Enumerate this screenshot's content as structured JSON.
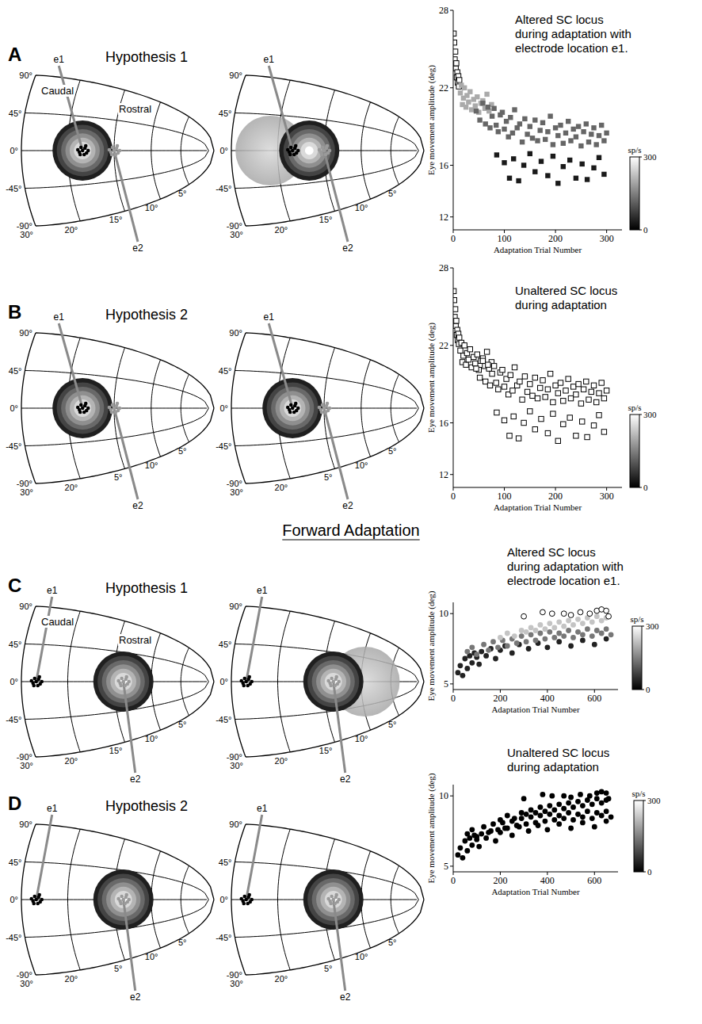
{
  "section_heading": "Forward Adaptation",
  "panels": [
    {
      "letter": "A",
      "title": "Hypothesis 1",
      "caudal": "Caudal",
      "rostral": "Rostral",
      "directions": [
        "90°",
        "45°",
        "0°",
        "-45°",
        "-90°"
      ],
      "amplitudes": [
        "30°",
        "20°",
        "15°",
        "10°",
        "5°"
      ],
      "electrodes": [
        "e1",
        "e2"
      ]
    },
    {
      "letter": "B",
      "title": "Hypothesis 2",
      "directions": [
        "90°",
        "45°",
        "0°",
        "-45°",
        "-90°"
      ],
      "amplitudes": [
        "30°",
        "20°",
        "5°",
        "10°",
        "5°"
      ],
      "electrodes": [
        "e1",
        "e2"
      ]
    },
    {
      "letter": "C",
      "title": "Hypothesis 1",
      "caudal": "Caudal",
      "rostral": "Rostral",
      "directions": [
        "90°",
        "45°",
        "0°",
        "-45°",
        "-90°"
      ],
      "amplitudes": [
        "30°",
        "20°",
        "15°",
        "10°",
        "5°"
      ],
      "electrodes": [
        "e1",
        "e2"
      ]
    },
    {
      "letter": "D",
      "title": "Hypothesis 2",
      "directions": [
        "90°",
        "45°",
        "0°",
        "-45°",
        "-90°"
      ],
      "amplitudes": [
        "30°",
        "20°",
        "5°",
        "10°",
        "5°"
      ],
      "electrodes": [
        "e1",
        "e2"
      ]
    }
  ],
  "chart_data": [
    {
      "type": "scatter",
      "annotations": [
        "Altered SC locus",
        "during adaptation with",
        "electrode location e1."
      ],
      "x_label": "Adaptation Trial Number",
      "y_label": "Eye movement amplitude (deg)",
      "xlim": [
        0,
        330
      ],
      "xticks": [
        0,
        100,
        200,
        300
      ],
      "ylim": [
        11,
        28
      ],
      "yticks": [
        12,
        16,
        22,
        28
      ],
      "marker": "square",
      "colorbar": {
        "label": "sp/s",
        "range": [
          0,
          300
        ],
        "ticks": [
          0,
          300
        ]
      },
      "series": [
        {
          "rate": 300,
          "x": [
            1,
            2,
            3,
            4,
            5,
            6,
            7,
            8,
            9,
            10,
            11,
            12
          ],
          "values": [
            26.2,
            25.5,
            24.2,
            24.8,
            23.5,
            23.9,
            22.8,
            23.2,
            22.4,
            22.9,
            22.1,
            22.6
          ]
        },
        {
          "rate": 200,
          "x": [
            14,
            16,
            18,
            20,
            22,
            25,
            27,
            30,
            33,
            36,
            40,
            43,
            47,
            50,
            54,
            58,
            62,
            66,
            70,
            75
          ],
          "values": [
            21.6,
            22.2,
            20.7,
            21.2,
            22.0,
            20.5,
            21.4,
            20.9,
            21.7,
            20.3,
            21.1,
            20.6,
            21.3,
            20.1,
            20.8,
            21.0,
            20.4,
            21.5,
            20.2,
            20.7
          ]
        },
        {
          "rate": 120,
          "x": [
            45,
            52,
            58,
            63,
            68,
            72,
            76,
            80,
            84,
            88,
            92,
            96,
            100,
            104,
            108,
            112,
            116,
            120,
            125,
            130,
            135,
            140,
            145,
            150,
            155,
            160,
            165,
            170,
            175,
            180,
            185,
            190,
            195,
            200,
            205,
            210,
            215,
            220,
            225,
            230,
            235,
            240,
            245,
            250,
            255,
            260,
            265,
            270,
            275,
            280,
            285,
            290,
            295,
            300
          ],
          "values": [
            20.2,
            19.5,
            20.8,
            19.2,
            20.5,
            18.9,
            19.8,
            20.4,
            19.1,
            18.6,
            19.9,
            20.1,
            18.8,
            19.4,
            18.2,
            19.7,
            18.5,
            20.3,
            18.9,
            19.2,
            17.8,
            19.6,
            18.4,
            19.0,
            18.1,
            19.5,
            17.9,
            18.7,
            19.3,
            18.0,
            18.6,
            19.8,
            17.6,
            18.9,
            18.3,
            19.1,
            17.7,
            18.5,
            19.4,
            17.9,
            18.8,
            18.2,
            19.0,
            17.5,
            18.6,
            19.2,
            17.8,
            18.4,
            18.9,
            17.6,
            18.3,
            19.1,
            17.9,
            18.5
          ]
        },
        {
          "rate": 30,
          "x": [
            85,
            100,
            110,
            118,
            128,
            138,
            150,
            160,
            172,
            185,
            195,
            205,
            215,
            228,
            240,
            252,
            262,
            275,
            285,
            295
          ],
          "values": [
            16.8,
            16.2,
            15.0,
            16.5,
            14.8,
            16.0,
            16.9,
            15.5,
            16.3,
            15.2,
            16.7,
            14.6,
            15.9,
            16.4,
            15.0,
            16.1,
            14.9,
            15.8,
            16.6,
            15.3
          ]
        }
      ]
    },
    {
      "type": "scatter",
      "annotations": [
        "Unaltered SC locus",
        "during adaptation"
      ],
      "x_label": "Adaptation Trial Number",
      "y_label": "Eye movement amplitude (deg)",
      "xlim": [
        0,
        330
      ],
      "xticks": [
        0,
        100,
        200,
        300
      ],
      "ylim": [
        11,
        28
      ],
      "yticks": [
        12,
        16,
        22,
        28
      ],
      "marker": "square",
      "colorbar": {
        "label": "sp/s",
        "range": [
          0,
          300
        ],
        "ticks": [
          0,
          300
        ]
      },
      "series": [
        {
          "rate": 300,
          "x": [
            1,
            2,
            3,
            4,
            5,
            6,
            7,
            8,
            9,
            10,
            11,
            12,
            14,
            16,
            18,
            20,
            22,
            25,
            27,
            30,
            33,
            36,
            40,
            43,
            47,
            50,
            54,
            58,
            62,
            66,
            70,
            75,
            45,
            52,
            58,
            63,
            68,
            72,
            76,
            80,
            84,
            88,
            92,
            96,
            100,
            104,
            108,
            112,
            116,
            120,
            125,
            130,
            135,
            140,
            145,
            150,
            155,
            160,
            165,
            170,
            175,
            180,
            185,
            190,
            195,
            200,
            205,
            210,
            215,
            220,
            225,
            230,
            235,
            240,
            245,
            250,
            255,
            260,
            265,
            270,
            275,
            280,
            285,
            290,
            295,
            300,
            85,
            100,
            110,
            118,
            128,
            138,
            150,
            160,
            172,
            185,
            195,
            205,
            215,
            228,
            240,
            252,
            262,
            275,
            285,
            295
          ],
          "values": [
            26.2,
            25.5,
            24.2,
            24.8,
            23.5,
            23.9,
            22.8,
            23.2,
            22.4,
            22.9,
            22.1,
            22.6,
            21.6,
            22.2,
            20.7,
            21.2,
            22.0,
            20.5,
            21.4,
            20.9,
            21.7,
            20.3,
            21.1,
            20.6,
            21.3,
            20.1,
            20.8,
            21.0,
            20.4,
            21.5,
            20.2,
            20.7,
            20.2,
            19.5,
            20.8,
            19.2,
            20.5,
            18.9,
            19.8,
            20.4,
            19.1,
            18.6,
            19.9,
            20.1,
            18.8,
            19.4,
            18.2,
            19.7,
            18.5,
            20.3,
            18.9,
            19.2,
            17.8,
            19.6,
            18.4,
            19.0,
            18.1,
            19.5,
            17.9,
            18.7,
            19.3,
            18.0,
            18.6,
            19.8,
            17.6,
            18.9,
            18.3,
            19.1,
            17.7,
            18.5,
            19.4,
            17.9,
            18.8,
            18.2,
            19.0,
            17.5,
            18.6,
            19.2,
            17.8,
            18.4,
            18.9,
            17.6,
            18.3,
            19.1,
            17.9,
            18.5,
            16.8,
            16.2,
            15.0,
            16.5,
            14.8,
            16.0,
            16.9,
            15.5,
            16.3,
            15.2,
            16.7,
            14.6,
            15.9,
            16.4,
            15.0,
            16.1,
            14.9,
            15.8,
            16.6,
            15.3
          ]
        }
      ]
    },
    {
      "type": "scatter",
      "annotations": [
        "Altered SC locus",
        "during adaptation with",
        "electrode location e1."
      ],
      "x_label": "Adaptation Trial Number",
      "y_label": "Eye movement amplitude (deg)",
      "xlim": [
        0,
        700
      ],
      "xticks": [
        0,
        200,
        400,
        600
      ],
      "ylim": [
        4.6,
        10.8
      ],
      "yticks": [
        5,
        10
      ],
      "marker": "circle",
      "colorbar": {
        "label": "sp/s",
        "range": [
          0,
          300
        ],
        "ticks": [
          0,
          300
        ]
      },
      "series": [
        {
          "rate": 40,
          "x": [
            20,
            30,
            40,
            50,
            60,
            70,
            80,
            90,
            100,
            110,
            120,
            140,
            160,
            180,
            200,
            220,
            250,
            280,
            320,
            360,
            400,
            450,
            500,
            550,
            600,
            650
          ],
          "values": [
            5.8,
            6.3,
            5.6,
            6.8,
            6.1,
            7.0,
            6.5,
            7.2,
            6.9,
            6.4,
            7.3,
            7.0,
            7.5,
            6.8,
            7.4,
            7.7,
            7.2,
            7.8,
            7.5,
            7.9,
            7.6,
            8.0,
            7.7,
            8.1,
            7.8,
            8.2
          ]
        },
        {
          "rate": 140,
          "x": [
            60,
            80,
            100,
            130,
            150,
            170,
            190,
            210,
            230,
            250,
            270,
            290,
            310,
            330,
            350,
            370,
            390,
            410,
            430,
            450,
            470,
            490,
            510,
            530,
            550,
            570,
            590,
            610,
            630,
            650,
            670
          ],
          "values": [
            7.3,
            7.6,
            7.1,
            7.8,
            7.4,
            8.0,
            7.6,
            8.1,
            7.7,
            8.2,
            7.9,
            8.4,
            8.0,
            8.5,
            8.1,
            8.6,
            8.2,
            8.7,
            8.3,
            8.6,
            8.4,
            8.8,
            8.3,
            8.7,
            8.5,
            8.9,
            8.4,
            8.8,
            8.6,
            8.9,
            8.5
          ]
        },
        {
          "rate": 230,
          "x": [
            200,
            230,
            260,
            290,
            310,
            330,
            350,
            370,
            390,
            410,
            430,
            450,
            470,
            490,
            510,
            530,
            550,
            570,
            590,
            610,
            630,
            650
          ],
          "values": [
            8.3,
            8.6,
            8.4,
            8.8,
            8.7,
            9.0,
            8.8,
            9.2,
            8.9,
            9.3,
            9.0,
            9.4,
            9.1,
            9.5,
            9.2,
            9.6,
            9.3,
            9.7,
            9.4,
            9.8,
            9.5,
            9.7
          ]
        },
        {
          "rate": 300,
          "x": [
            300,
            380,
            420,
            470,
            500,
            540,
            580,
            610,
            630,
            650,
            660
          ],
          "values": [
            9.8,
            10.1,
            10.0,
            10.0,
            9.9,
            10.1,
            10.0,
            10.2,
            10.3,
            10.2,
            9.8
          ]
        }
      ]
    },
    {
      "type": "scatter",
      "annotations": [
        "Unaltered SC locus",
        "during adaptation"
      ],
      "x_label": "Adaptation Trial Number",
      "y_label": "Eye movement amplitude (deg)",
      "xlim": [
        0,
        700
      ],
      "xticks": [
        0,
        200,
        400,
        600
      ],
      "ylim": [
        4.6,
        10.8
      ],
      "yticks": [
        5,
        10
      ],
      "marker": "circle",
      "colorbar": {
        "label": "sp/s",
        "range": [
          0,
          300
        ],
        "ticks": [
          0,
          300
        ]
      },
      "series": [
        {
          "rate": 0,
          "x": [
            20,
            30,
            40,
            50,
            60,
            70,
            80,
            90,
            100,
            110,
            120,
            140,
            160,
            180,
            200,
            220,
            250,
            280,
            320,
            360,
            400,
            450,
            500,
            550,
            600,
            650,
            60,
            80,
            100,
            130,
            150,
            170,
            190,
            210,
            230,
            250,
            270,
            290,
            310,
            330,
            350,
            370,
            390,
            410,
            430,
            450,
            470,
            490,
            510,
            530,
            550,
            570,
            590,
            610,
            630,
            650,
            670,
            200,
            230,
            260,
            290,
            310,
            330,
            350,
            370,
            390,
            410,
            430,
            450,
            470,
            490,
            510,
            530,
            550,
            570,
            590,
            610,
            630,
            650,
            300,
            380,
            420,
            470,
            500,
            540,
            580,
            610,
            630,
            650,
            660
          ],
          "values": [
            5.8,
            6.3,
            5.6,
            6.8,
            6.1,
            7.0,
            6.5,
            7.2,
            6.9,
            6.4,
            7.3,
            7.0,
            7.5,
            6.8,
            7.4,
            7.7,
            7.2,
            7.8,
            7.5,
            7.9,
            7.6,
            8.0,
            7.7,
            8.1,
            7.8,
            8.2,
            7.3,
            7.6,
            7.1,
            7.8,
            7.4,
            8.0,
            7.6,
            8.1,
            7.7,
            8.2,
            7.9,
            8.4,
            8.0,
            8.5,
            8.1,
            8.6,
            8.2,
            8.7,
            8.3,
            8.6,
            8.4,
            8.8,
            8.3,
            8.7,
            8.5,
            8.9,
            8.4,
            8.8,
            8.6,
            8.9,
            8.5,
            8.3,
            8.6,
            8.4,
            8.8,
            8.7,
            9.0,
            8.8,
            9.2,
            8.9,
            9.3,
            9.0,
            9.4,
            9.1,
            9.5,
            9.2,
            9.6,
            9.3,
            9.7,
            9.4,
            9.8,
            9.5,
            9.7,
            9.8,
            10.1,
            10.0,
            10.0,
            9.9,
            10.1,
            10.0,
            10.2,
            10.3,
            10.2,
            9.8
          ]
        }
      ]
    }
  ]
}
